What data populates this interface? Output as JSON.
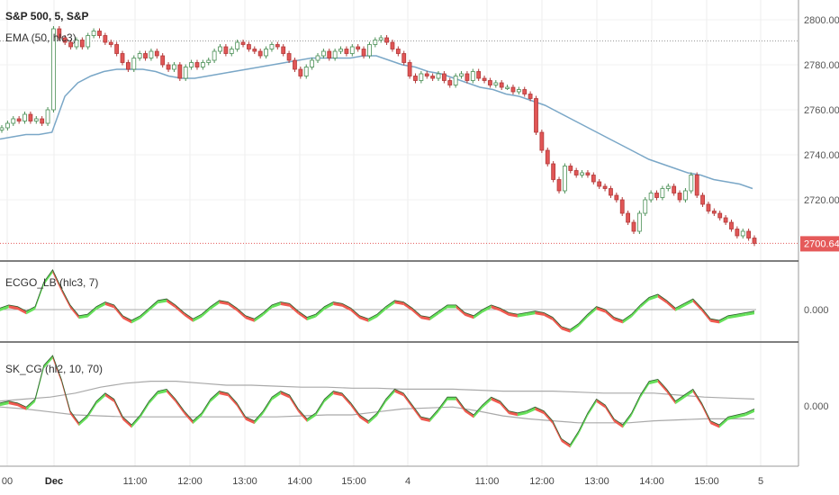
{
  "chart_data": [
    {
      "type": "candlestick",
      "title": "S&P 500, 5, S&P",
      "indicator": "EMA (50, hlc3)",
      "yticks": [
        "2800.00",
        "2780.00",
        "2760.00",
        "2740.00",
        "2720.00"
      ],
      "ylim": [
        2694,
        2808
      ],
      "last_price": "2700.64",
      "prev_close": 2790.6,
      "close_prices": [
        2752,
        2754,
        2756,
        2755,
        2758,
        2755,
        2756,
        2754,
        2760,
        2796,
        2792,
        2790,
        2788,
        2791,
        2788,
        2793,
        2795,
        2793,
        2790,
        2789,
        2785,
        2781,
        2778,
        2783,
        2785,
        2783,
        2786,
        2784,
        2780,
        2778,
        2780,
        2774,
        2779,
        2781,
        2779,
        2781,
        2782,
        2786,
        2788,
        2785,
        2787,
        2790,
        2789,
        2787,
        2786,
        2784,
        2787,
        2789,
        2788,
        2785,
        2782,
        2778,
        2775,
        2779,
        2782,
        2784,
        2786,
        2783,
        2786,
        2787,
        2785,
        2788,
        2787,
        2784,
        2789,
        2791,
        2792,
        2790,
        2787,
        2785,
        2781,
        2775,
        2773,
        2776,
        2775,
        2774,
        2776,
        2773,
        2771,
        2775,
        2776,
        2773,
        2777,
        2774,
        2773,
        2771,
        2772,
        2770,
        2770,
        2768,
        2769,
        2767,
        2765,
        2750,
        2742,
        2736,
        2729,
        2724,
        2735,
        2733,
        2731,
        2732,
        2731,
        2728,
        2726,
        2725,
        2722,
        2720,
        2714,
        2710,
        2706,
        2714,
        2720,
        2723,
        2721,
        2725,
        2726,
        2723,
        2720,
        2724,
        2731,
        2722,
        2718,
        2715,
        2714,
        2712,
        2710,
        2707,
        2704,
        2706,
        2703,
        2700.64
      ],
      "ema": [
        2747,
        2748,
        2749,
        2749,
        2750,
        2766,
        2772,
        2775,
        2777,
        2778,
        2778,
        2778,
        2777,
        2775,
        2774,
        2774,
        2775,
        2776,
        2777,
        2778,
        2779,
        2780,
        2781,
        2782,
        2783,
        2783,
        2783,
        2783,
        2784,
        2784,
        2782,
        2780,
        2779,
        2777,
        2776,
        2774,
        2772,
        2770,
        2769,
        2767,
        2766,
        2764,
        2762,
        2759,
        2756,
        2753,
        2750,
        2747,
        2744,
        2741,
        2738,
        2736,
        2734,
        2732,
        2731,
        2729,
        2728,
        2727,
        2725
      ],
      "ema_x": [
        0,
        10,
        20,
        30,
        40,
        50,
        60,
        70,
        80,
        90,
        100,
        110,
        120,
        130,
        140,
        150,
        160,
        170,
        180,
        190,
        200,
        210,
        220,
        230,
        240,
        250,
        260,
        270,
        280,
        290,
        300,
        310,
        320,
        330,
        340,
        350,
        360,
        370,
        380,
        390,
        400,
        410,
        420,
        430,
        440,
        450,
        460,
        470,
        480,
        490,
        500,
        510,
        520,
        530,
        540,
        550,
        560,
        570,
        580
      ]
    },
    {
      "type": "oscillator",
      "title": "ECGO_LB (hlc3, 7)",
      "ytick": "0.000",
      "values": [
        0.1,
        0.3,
        0.2,
        -0.1,
        0.2,
        1.8,
        2.6,
        1.4,
        0.3,
        -0.4,
        -0.3,
        0.2,
        0.5,
        0.3,
        -0.4,
        -0.7,
        -0.4,
        0.1,
        0.6,
        0.7,
        0.3,
        -0.2,
        -0.6,
        -0.3,
        0.2,
        0.6,
        0.5,
        0.1,
        -0.4,
        -0.6,
        -0.2,
        0.3,
        0.5,
        0.4,
        -0.1,
        -0.5,
        -0.3,
        0.2,
        0.5,
        0.4,
        0.1,
        -0.4,
        -0.6,
        -0.3,
        0.2,
        0.6,
        0.5,
        0.1,
        -0.4,
        -0.5,
        -0.1,
        0.3,
        0.3,
        -0.2,
        -0.4,
        0.0,
        0.3,
        0.1,
        -0.2,
        -0.3,
        -0.2,
        -0.1,
        -0.2,
        -0.5,
        -1.1,
        -1.3,
        -0.9,
        -0.3,
        0.2,
        0.0,
        -0.5,
        -0.7,
        -0.3,
        0.3,
        0.8,
        1.0,
        0.6,
        0.1,
        0.4,
        0.7,
        0.1,
        -0.6,
        -0.7,
        -0.4,
        -0.3,
        -0.2,
        -0.1
      ]
    },
    {
      "type": "oscillator",
      "title": "SK_CG (hl2, 10, 70)",
      "ytick": "0.000",
      "values": [
        0.1,
        0.2,
        0.1,
        -0.1,
        0.3,
        2.0,
        2.5,
        1.3,
        -0.3,
        -0.9,
        -0.5,
        0.2,
        0.6,
        0.3,
        -0.6,
        -1.0,
        -0.5,
        0.2,
        0.7,
        0.8,
        0.3,
        -0.3,
        -0.8,
        -0.4,
        0.3,
        0.7,
        0.6,
        0.1,
        -0.6,
        -0.8,
        -0.3,
        0.4,
        0.7,
        0.5,
        -0.2,
        -0.7,
        -0.4,
        0.3,
        0.7,
        0.6,
        0.1,
        -0.5,
        -0.8,
        -0.4,
        0.3,
        0.8,
        0.6,
        0.0,
        -0.6,
        -0.7,
        -0.2,
        0.4,
        0.4,
        -0.2,
        -0.5,
        0.0,
        0.4,
        0.2,
        -0.3,
        -0.4,
        -0.3,
        -0.1,
        -0.3,
        -0.8,
        -1.7,
        -2.0,
        -1.3,
        -0.4,
        0.3,
        0.0,
        -0.7,
        -1.0,
        -0.4,
        0.5,
        1.2,
        1.3,
        0.8,
        0.2,
        0.5,
        0.8,
        0.1,
        -0.8,
        -1.0,
        -0.6,
        -0.5,
        -0.4,
        -0.2
      ],
      "upper_band": [
        0.2,
        0.3,
        0.4,
        0.6,
        0.9,
        1.1,
        1.2,
        1.2,
        1.1,
        1.0,
        1.0,
        0.95,
        0.9,
        0.9,
        0.85,
        0.85,
        0.8,
        0.8,
        0.8,
        0.75,
        0.7,
        0.7,
        0.7,
        0.65,
        0.6,
        0.6,
        0.6,
        0.5,
        0.4,
        0.35,
        0.3
      ],
      "lower_band": [
        -0.1,
        -0.2,
        -0.35,
        -0.5,
        -0.55,
        -0.6,
        -0.6,
        -0.6,
        -0.6,
        -0.6,
        -0.6,
        -0.6,
        -0.55,
        -0.5,
        -0.5,
        -0.35,
        -0.2,
        -0.15,
        -0.1,
        -0.3,
        -0.55,
        -0.7,
        -0.8,
        -0.9,
        -0.9,
        -0.9,
        -0.8,
        -0.75,
        -0.7,
        -0.7,
        -0.7
      ]
    }
  ],
  "x_axis": {
    "ticks": [
      "00",
      "Dec",
      "11:00",
      "12:00",
      "13:00",
      "14:00",
      "15:00",
      "4",
      "11:00",
      "12:00",
      "13:00",
      "14:00",
      "15:00",
      "5"
    ],
    "bold": [
      "Dec"
    ]
  }
}
